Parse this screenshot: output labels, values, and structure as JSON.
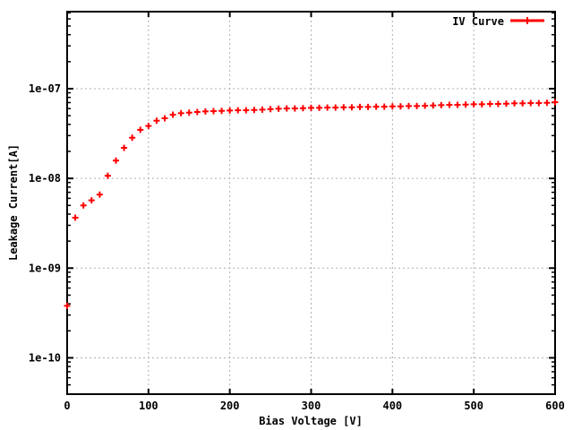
{
  "window": {
    "background": "#ffffff"
  },
  "chart_data": {
    "type": "scatter",
    "title": "",
    "xlabel": "Bias Voltage [V]",
    "ylabel": "Leakage Current[A]",
    "legend_label": "IV Curve",
    "legend_position": "top-right",
    "x_scale": "linear",
    "y_scale": "log",
    "grid": true,
    "xlim": [
      0,
      600
    ],
    "ylim": [
      4e-11,
      7.3e-07
    ],
    "x_ticks": [
      0,
      100,
      200,
      300,
      400,
      500,
      600
    ],
    "y_ticks": [
      "1e-10",
      "1e-09",
      "1e-08",
      "1e-07"
    ],
    "y_tick_values": [
      1e-10,
      1e-09,
      1e-08,
      1e-07
    ],
    "marker": "plus",
    "series_color": "#ff0000",
    "grid_color": "#b0b0b0",
    "x": [
      0,
      10,
      20,
      30,
      40,
      50,
      60,
      70,
      80,
      90,
      100,
      110,
      120,
      130,
      140,
      150,
      160,
      170,
      180,
      190,
      200,
      210,
      220,
      230,
      240,
      250,
      260,
      270,
      280,
      290,
      300,
      310,
      320,
      330,
      340,
      350,
      360,
      370,
      380,
      390,
      400,
      410,
      420,
      430,
      440,
      450,
      460,
      470,
      480,
      490,
      500,
      510,
      520,
      530,
      540,
      550,
      560,
      570,
      580,
      590,
      600
    ],
    "series": [
      {
        "name": "IV Curve",
        "values": [
          3.8e-10,
          3.65e-09,
          5e-09,
          5.7e-09,
          6.6e-09,
          1.07e-08,
          1.58e-08,
          2.19e-08,
          2.84e-08,
          3.48e-08,
          3.84e-08,
          4.4e-08,
          4.68e-08,
          5.13e-08,
          5.33e-08,
          5.41e-08,
          5.5e-08,
          5.58e-08,
          5.62e-08,
          5.66e-08,
          5.71e-08,
          5.75e-08,
          5.75e-08,
          5.79e-08,
          5.84e-08,
          5.92e-08,
          5.98e-08,
          6.02e-08,
          6.02e-08,
          6.06e-08,
          6.12e-08,
          6.12e-08,
          6.16e-08,
          6.16e-08,
          6.2e-08,
          6.2e-08,
          6.26e-08,
          6.26e-08,
          6.3e-08,
          6.3e-08,
          6.35e-08,
          6.35e-08,
          6.41e-08,
          6.41e-08,
          6.45e-08,
          6.5e-08,
          6.56e-08,
          6.6e-08,
          6.6e-08,
          6.65e-08,
          6.71e-08,
          6.71e-08,
          6.76e-08,
          6.76e-08,
          6.8e-08,
          6.87e-08,
          6.87e-08,
          6.91e-08,
          6.91e-08,
          6.96e-08,
          7.07e-08
        ]
      }
    ]
  }
}
